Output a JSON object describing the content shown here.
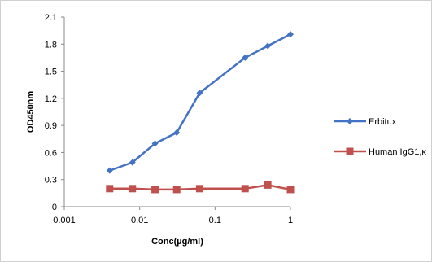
{
  "chart_data": {
    "type": "line",
    "title": "",
    "xlabel": "Conc(µg/ml)",
    "ylabel": "OD450nm",
    "xscale": "log",
    "xlim": [
      0.001,
      1
    ],
    "ylim": [
      0,
      2.1
    ],
    "xticks": [
      0.001,
      0.01,
      0.1,
      1
    ],
    "xtick_labels": [
      "0.001",
      "0.01",
      "0.1",
      "1"
    ],
    "yticks": [
      0,
      0.3,
      0.6,
      0.9,
      1.2,
      1.5,
      1.8,
      2.1
    ],
    "ytick_labels": [
      "0",
      "0.3",
      "0.6",
      "0.9",
      "1.2",
      "1.5",
      "1.8",
      "2.1"
    ],
    "grid": false,
    "legend_position": "right",
    "series": [
      {
        "name": "Erbitux",
        "color": "#4472C4",
        "marker": "diamond",
        "x": [
          0.004,
          0.008,
          0.016,
          0.031,
          0.0625,
          0.25,
          0.5,
          1
        ],
        "y": [
          0.4,
          0.49,
          0.7,
          0.82,
          1.26,
          1.65,
          1.78,
          1.91
        ]
      },
      {
        "name": "Human IgG1,κ",
        "color": "#C0504D",
        "marker": "square",
        "x": [
          0.004,
          0.008,
          0.016,
          0.031,
          0.0625,
          0.25,
          0.5,
          1
        ],
        "y": [
          0.2,
          0.2,
          0.19,
          0.19,
          0.2,
          0.2,
          0.24,
          0.19
        ]
      }
    ]
  }
}
